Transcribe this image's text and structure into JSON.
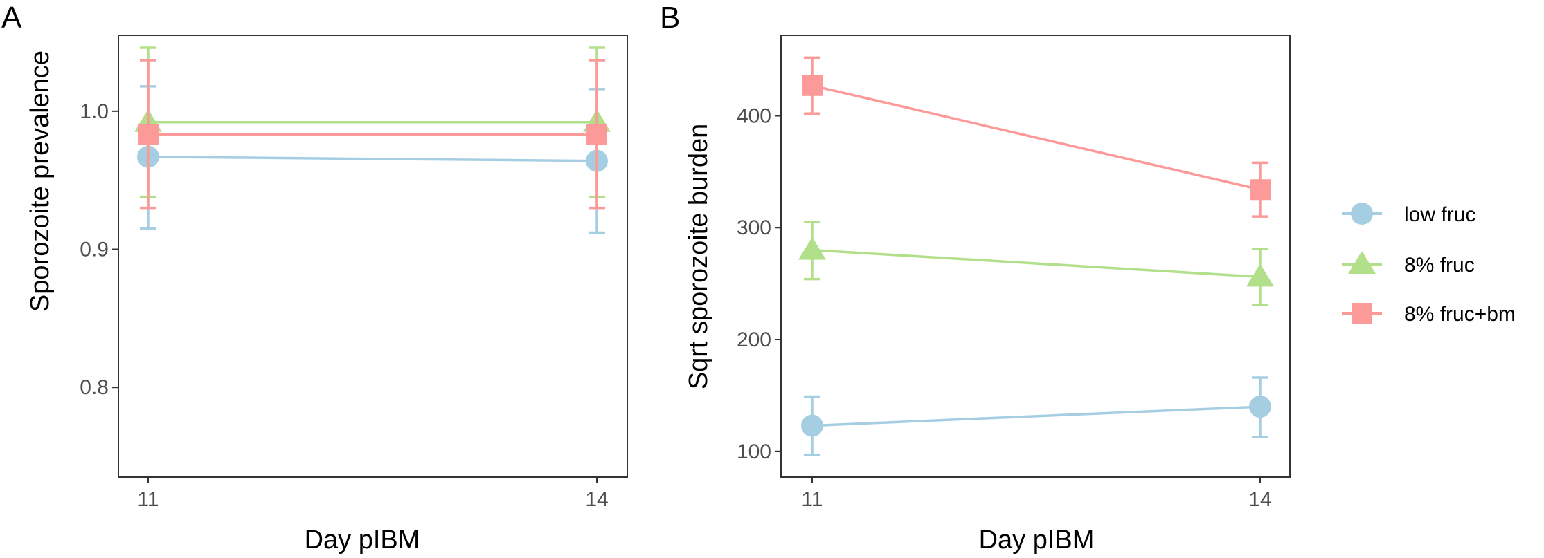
{
  "chart_data": [
    {
      "panel_label": "A",
      "type": "line",
      "title": "",
      "xlabel": "Day pIBM",
      "ylabel": "Sporozoite prevalence",
      "categories": [
        "11",
        "14"
      ],
      "ylim": [
        0.735,
        1.055
      ],
      "yticks": [
        0.8,
        0.9,
        1.0
      ],
      "ytick_labels": [
        "0.8",
        "0.9",
        "1.0"
      ],
      "grid": false,
      "series": [
        {
          "name": "low fruc",
          "marker": "circle",
          "color": "#A6CEE3",
          "values": [
            0.967,
            0.964
          ],
          "lower": [
            0.915,
            0.912
          ],
          "upper": [
            1.018,
            1.016
          ]
        },
        {
          "name": "8% fruc",
          "marker": "triangle",
          "color": "#B2DF8A",
          "values": [
            0.992,
            0.992
          ],
          "lower": [
            0.938,
            0.938
          ],
          "upper": [
            1.046,
            1.046
          ]
        },
        {
          "name": "8% fruc+bm",
          "marker": "square",
          "color": "#FB9A99",
          "values": [
            0.983,
            0.983
          ],
          "lower": [
            0.93,
            0.93
          ],
          "upper": [
            1.037,
            1.037
          ]
        }
      ]
    },
    {
      "panel_label": "B",
      "type": "line",
      "title": "",
      "xlabel": "Day pIBM",
      "ylabel": "Sqrt sporozoite burden",
      "categories": [
        "11",
        "14"
      ],
      "ylim": [
        77,
        472
      ],
      "yticks": [
        100,
        200,
        300,
        400
      ],
      "ytick_labels": [
        "100",
        "200",
        "300",
        "400"
      ],
      "grid": false,
      "legend_position": "right",
      "series": [
        {
          "name": "low fruc",
          "marker": "circle",
          "color": "#A6CEE3",
          "values": [
            123,
            140
          ],
          "lower": [
            97,
            113
          ],
          "upper": [
            149,
            166
          ]
        },
        {
          "name": "8% fruc",
          "marker": "triangle",
          "color": "#B2DF8A",
          "values": [
            280,
            256
          ],
          "lower": [
            254,
            231
          ],
          "upper": [
            305,
            281
          ]
        },
        {
          "name": "8% fruc+bm",
          "marker": "square",
          "color": "#FB9A99",
          "values": [
            427,
            334
          ],
          "lower": [
            402,
            310
          ],
          "upper": [
            452,
            358
          ]
        }
      ]
    }
  ],
  "legend": {
    "items": [
      {
        "label": "low fruc",
        "marker": "circle",
        "color": "#A6CEE3"
      },
      {
        "label": "8% fruc",
        "marker": "triangle",
        "color": "#B2DF8A"
      },
      {
        "label": "8% fruc+bm",
        "marker": "square",
        "color": "#FB9A99"
      }
    ]
  }
}
